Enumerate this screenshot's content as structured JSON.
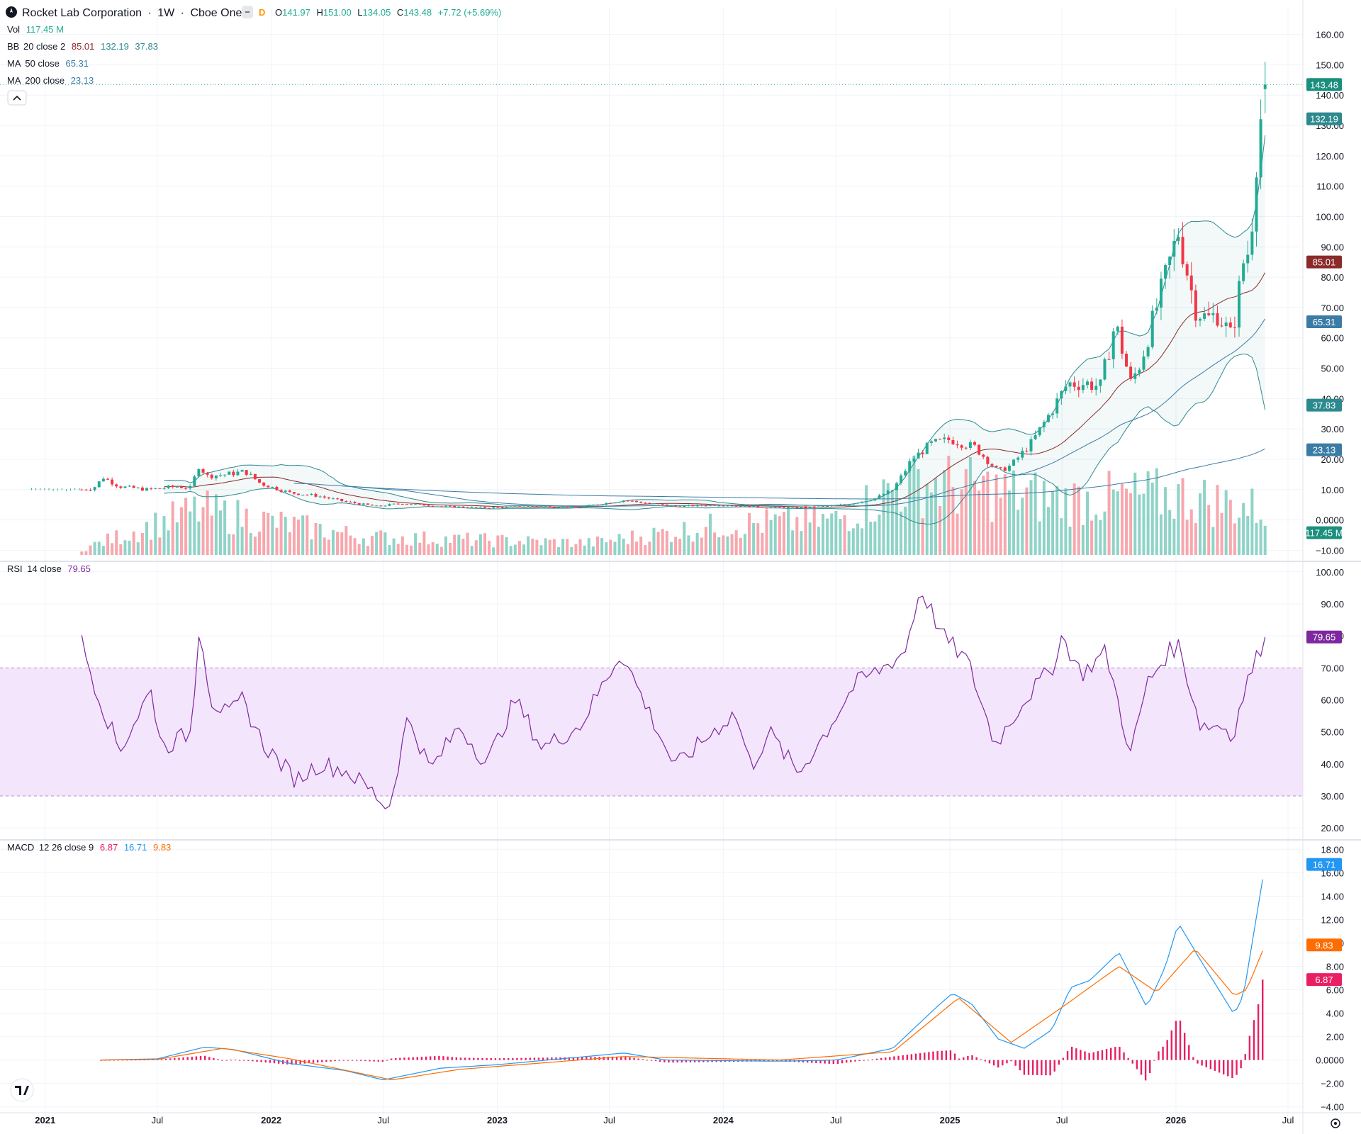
{
  "header": {
    "symbol": "Rocket Lab Corporation",
    "interval": "1W",
    "exchange": "Cboe One",
    "separator": "·",
    "badge": "D",
    "open_label": "O",
    "open": "141.97",
    "high_label": "H",
    "high": "151.00",
    "low_label": "L",
    "low": "134.05",
    "close_label": "C",
    "close": "143.48",
    "change": "+7.72 (+5.69%)"
  },
  "legend": {
    "vol": {
      "label": "Vol",
      "value": "117.45 M"
    },
    "bb": {
      "label": "BB",
      "params": "20 close 2",
      "basis": "85.01",
      "upper": "132.19",
      "lower": "37.83"
    },
    "ma50": {
      "label": "MA",
      "params": "50 close",
      "value": "65.31"
    },
    "ma200": {
      "label": "MA",
      "params": "200 close",
      "value": "23.13"
    },
    "rsi": {
      "label": "RSI",
      "params": "14 close",
      "value": "79.65"
    },
    "macd": {
      "label": "MACD",
      "params": "12 26 close 9",
      "hist": "6.87",
      "macd": "16.71",
      "signal": "9.83"
    }
  },
  "price_tags": {
    "close": "143.48",
    "bb_upper": "132.19",
    "bb_basis": "85.01",
    "ma50": "65.31",
    "bb_lower": "37.83",
    "ma200": "23.13",
    "volume": "117.45 M",
    "rsi": "79.65",
    "macd": "16.71",
    "signal": "9.83",
    "hist": "6.87"
  },
  "colors": {
    "up": "#22ab94",
    "down": "#f23645",
    "up_vol": "#8fd3c7",
    "down_vol": "#f7a7ad",
    "bb_band": "#2c8a8f",
    "bb_basis": "#8b2a2a",
    "ma50": "#3a7ca5",
    "ma200": "#3a7ca5",
    "rsi": "#7e28a0",
    "rsi_band": "#f3e5fb",
    "macd": "#2196f3",
    "signal": "#ff6d00",
    "hist": "#e91e63",
    "tag_close": "#1a8f7d",
    "tag_basis": "#8b2a2a",
    "tag_ma": "#3a7ca5",
    "tag_rsi": "#7e28a0",
    "tag_macd": "#2196f3",
    "tag_signal": "#ff6d00",
    "tag_hist": "#e91e63"
  },
  "chart_data": [
    {
      "type": "candlestick",
      "title": "Rocket Lab Corporation · 1W · Cboe One",
      "x_ticks": [
        "2021",
        "Jul",
        "2022",
        "Jul",
        "2023",
        "Jul",
        "2024",
        "Jul",
        "2025",
        "Jul",
        "2026",
        "Jul"
      ],
      "y_ticks": [
        "160.00",
        "150.00",
        "140.00",
        "130.00",
        "120.00",
        "110.00",
        "100.00",
        "90.00",
        "80.00",
        "70.00",
        "60.00",
        "50.00",
        "40.00",
        "30.00",
        "20.00",
        "10.00",
        "0.0000",
        "−10.00"
      ],
      "ylim": [
        -12,
        162
      ],
      "x_range": [
        "2020-10-20",
        "2026-07-25"
      ],
      "anchors": [
        [
          "2021-03-01",
          10.0
        ],
        [
          "2021-03-20",
          10.5
        ],
        [
          "2021-04-05",
          14.0
        ],
        [
          "2021-05-01",
          11.0
        ],
        [
          "2021-06-15",
          10.0
        ],
        [
          "2021-08-01",
          11.0
        ],
        [
          "2021-08-25",
          10.5
        ],
        [
          "2021-09-05",
          18.0
        ],
        [
          "2021-09-20",
          14.5
        ],
        [
          "2021-10-20",
          15.0
        ],
        [
          "2021-11-20",
          16.0
        ],
        [
          "2021-12-15",
          12.0
        ],
        [
          "2022-01-30",
          9.0
        ],
        [
          "2022-03-15",
          8.0
        ],
        [
          "2022-05-01",
          6.0
        ],
        [
          "2022-06-20",
          4.5
        ],
        [
          "2022-08-01",
          5.5
        ],
        [
          "2022-10-01",
          4.5
        ],
        [
          "2022-12-15",
          4.0
        ],
        [
          "2023-03-01",
          4.5
        ],
        [
          "2023-05-15",
          4.2
        ],
        [
          "2023-07-25",
          6.5
        ],
        [
          "2023-09-01",
          5.5
        ],
        [
          "2023-10-15",
          4.5
        ],
        [
          "2024-01-01",
          5.0
        ],
        [
          "2024-03-01",
          4.2
        ],
        [
          "2024-05-15",
          4.0
        ],
        [
          "2024-07-15",
          5.0
        ],
        [
          "2024-09-01",
          7.0
        ],
        [
          "2024-10-01",
          10.0
        ],
        [
          "2024-11-01",
          20.0
        ],
        [
          "2024-12-01",
          25.0
        ],
        [
          "2025-01-01",
          26.5
        ],
        [
          "2025-02-10",
          24.0
        ],
        [
          "2025-03-20",
          16.0
        ],
        [
          "2025-04-10",
          18.0
        ],
        [
          "2025-05-15",
          26.0
        ],
        [
          "2025-06-20",
          38.0
        ],
        [
          "2025-07-10",
          45.0
        ],
        [
          "2025-08-10",
          45.0
        ],
        [
          "2025-09-01",
          44.0
        ],
        [
          "2025-09-25",
          65.0
        ],
        [
          "2025-10-20",
          45.0
        ],
        [
          "2025-11-05",
          52.0
        ],
        [
          "2025-12-15",
          80.0
        ],
        [
          "2026-01-05",
          95.0
        ],
        [
          "2026-02-01",
          70.0
        ],
        [
          "2026-02-20",
          66.0
        ],
        [
          "2026-03-10",
          68.0
        ],
        [
          "2026-04-01",
          60.0
        ],
        [
          "2026-04-20",
          85.0
        ],
        [
          "2026-05-01",
          90.0
        ],
        [
          "2026-05-10",
          118.0
        ],
        [
          "2026-05-20",
          136.0
        ],
        [
          "2026-05-25",
          143.48
        ]
      ],
      "last": {
        "open": 141.97,
        "high": 151.0,
        "low": 134.05,
        "close": 143.48,
        "change": 7.72,
        "change_pct": 5.69
      },
      "indicators": {
        "bb_upper": 132.19,
        "bb_basis": 85.01,
        "bb_lower": 37.83,
        "ma50": 65.31,
        "ma200": 23.13
      }
    },
    {
      "type": "bar",
      "title": "Vol",
      "last_value": "117.45 M",
      "relative_anchors": [
        [
          "2021-03-01",
          0.06
        ],
        [
          "2021-09-05",
          0.45
        ],
        [
          "2022-06-01",
          0.18
        ],
        [
          "2023-06-01",
          0.12
        ],
        [
          "2024-01-01",
          0.3
        ],
        [
          "2024-07-01",
          0.35
        ],
        [
          "2024-11-01",
          0.75
        ],
        [
          "2025-07-01",
          0.55
        ],
        [
          "2026-01-01",
          0.6
        ],
        [
          "2026-05-25",
          0.45
        ]
      ]
    },
    {
      "type": "line",
      "title": "RSI 14 close",
      "y_ticks": [
        "100.00",
        "90.00",
        "80.00",
        "70.00",
        "60.00",
        "50.00",
        "40.00",
        "30.00",
        "20.00"
      ],
      "ylim": [
        18.5,
        101.5
      ],
      "band": [
        30,
        70
      ],
      "last_value": 79.65,
      "anchors": [
        [
          "2021-03-01",
          78
        ],
        [
          "2021-03-25",
          63
        ],
        [
          "2021-05-01",
          44
        ],
        [
          "2021-06-20",
          63
        ],
        [
          "2021-07-10",
          45
        ],
        [
          "2021-08-25",
          50
        ],
        [
          "2021-09-07",
          85
        ],
        [
          "2021-09-25",
          60
        ],
        [
          "2021-10-25",
          55
        ],
        [
          "2021-11-15",
          60
        ],
        [
          "2021-12-20",
          46
        ],
        [
          "2022-02-10",
          35
        ],
        [
          "2022-03-20",
          40
        ],
        [
          "2022-05-01",
          38
        ],
        [
          "2022-06-10",
          32
        ],
        [
          "2022-07-10",
          26
        ],
        [
          "2022-08-10",
          55
        ],
        [
          "2022-09-15",
          38
        ],
        [
          "2022-11-01",
          52
        ],
        [
          "2022-12-15",
          40
        ],
        [
          "2023-01-30",
          60
        ],
        [
          "2023-03-15",
          45
        ],
        [
          "2023-05-15",
          52
        ],
        [
          "2023-07-20",
          75
        ],
        [
          "2023-08-25",
          60
        ],
        [
          "2023-10-15",
          39
        ],
        [
          "2023-12-15",
          50
        ],
        [
          "2024-01-20",
          56
        ],
        [
          "2024-02-15",
          39
        ],
        [
          "2024-03-15",
          50
        ],
        [
          "2024-05-01",
          37
        ],
        [
          "2024-06-15",
          50
        ],
        [
          "2024-08-01",
          65
        ],
        [
          "2024-09-15",
          70
        ],
        [
          "2024-10-20",
          75
        ],
        [
          "2024-11-15",
          95
        ],
        [
          "2024-12-20",
          80
        ],
        [
          "2025-01-30",
          72
        ],
        [
          "2025-03-15",
          46
        ],
        [
          "2025-05-01",
          60
        ],
        [
          "2025-06-15",
          70
        ],
        [
          "2025-07-01",
          80
        ],
        [
          "2025-08-01",
          68
        ],
        [
          "2025-09-10",
          75
        ],
        [
          "2025-10-20",
          43
        ],
        [
          "2025-11-15",
          65
        ],
        [
          "2025-12-20",
          75
        ],
        [
          "2026-01-05",
          77
        ],
        [
          "2026-02-10",
          52
        ],
        [
          "2026-03-20",
          52
        ],
        [
          "2026-04-01",
          48
        ],
        [
          "2026-04-25",
          65
        ],
        [
          "2026-05-25",
          79.65
        ]
      ]
    },
    {
      "type": "line",
      "title": "MACD 12 26 close 9",
      "y_ticks": [
        "18.00",
        "16.00",
        "14.00",
        "12.00",
        "10.00",
        "8.00",
        "6.00",
        "4.00",
        "2.00",
        "0.0000",
        "−2.00",
        "−4.00"
      ],
      "ylim": [
        -4.2,
        18.2
      ],
      "series_macd": [
        [
          "2021-04-01",
          0
        ],
        [
          "2021-07-01",
          0.1
        ],
        [
          "2021-09-15",
          1.1
        ],
        [
          "2021-11-01",
          0.9
        ],
        [
          "2022-02-01",
          -0.3
        ],
        [
          "2022-05-01",
          -0.9
        ],
        [
          "2022-07-01",
          -1.7
        ],
        [
          "2022-10-01",
          -0.7
        ],
        [
          "2023-01-01",
          -0.4
        ],
        [
          "2023-07-25",
          0.6
        ],
        [
          "2023-10-01",
          0
        ],
        [
          "2024-04-01",
          -0.1
        ],
        [
          "2024-07-01",
          0
        ],
        [
          "2024-10-01",
          1.0
        ],
        [
          "2024-12-10",
          4.5
        ],
        [
          "2025-01-05",
          5.7
        ],
        [
          "2025-02-05",
          4.8
        ],
        [
          "2025-03-20",
          1.8
        ],
        [
          "2025-05-01",
          1.0
        ],
        [
          "2025-06-15",
          2.6
        ],
        [
          "2025-07-15",
          6.2
        ],
        [
          "2025-08-15",
          6.8
        ],
        [
          "2025-10-01",
          9.2
        ],
        [
          "2025-11-15",
          4.5
        ],
        [
          "2025-12-15",
          8.0
        ],
        [
          "2026-01-05",
          11.7
        ],
        [
          "2026-02-10",
          8.5
        ],
        [
          "2026-04-05",
          3.9
        ],
        [
          "2026-04-20",
          5.5
        ],
        [
          "2026-05-25",
          16.71
        ]
      ],
      "series_signal": [
        [
          "2021-04-01",
          0
        ],
        [
          "2021-07-01",
          0.05
        ],
        [
          "2021-10-15",
          1.0
        ],
        [
          "2022-02-01",
          0.1
        ],
        [
          "2022-07-15",
          -1.7
        ],
        [
          "2022-11-01",
          -0.8
        ],
        [
          "2023-07-25",
          0.3
        ],
        [
          "2024-04-01",
          0
        ],
        [
          "2024-10-01",
          0.7
        ],
        [
          "2025-01-15",
          5.3
        ],
        [
          "2025-04-10",
          1.5
        ],
        [
          "2025-07-01",
          4.5
        ],
        [
          "2025-10-01",
          8.0
        ],
        [
          "2025-12-01",
          5.8
        ],
        [
          "2026-02-01",
          9.5
        ],
        [
          "2026-04-05",
          5.5
        ],
        [
          "2026-04-25",
          6.0
        ],
        [
          "2026-05-25",
          9.83
        ]
      ],
      "last": {
        "hist": 6.87,
        "macd": 16.71,
        "signal": 9.83
      }
    }
  ]
}
